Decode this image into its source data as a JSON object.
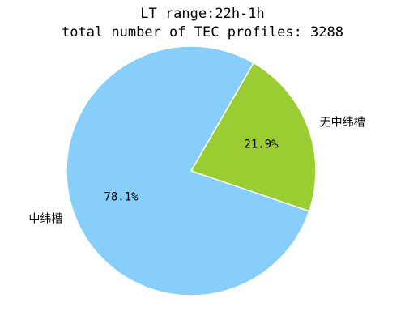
{
  "chart_data": {
    "type": "pie",
    "title_line1": "LT range:22h-1h",
    "title_line2": "total number of TEC profiles: 3288",
    "slices": [
      {
        "label": "无中纬槽",
        "value": 21.9,
        "pct_label": "21.9%",
        "color": "#9ACD32"
      },
      {
        "label": "中纬槽",
        "value": 78.1,
        "pct_label": "78.1%",
        "color": "#87CEFA"
      }
    ],
    "start_angle_deg": 60,
    "direction": "clockwise",
    "edge_color": "#ffffff"
  }
}
